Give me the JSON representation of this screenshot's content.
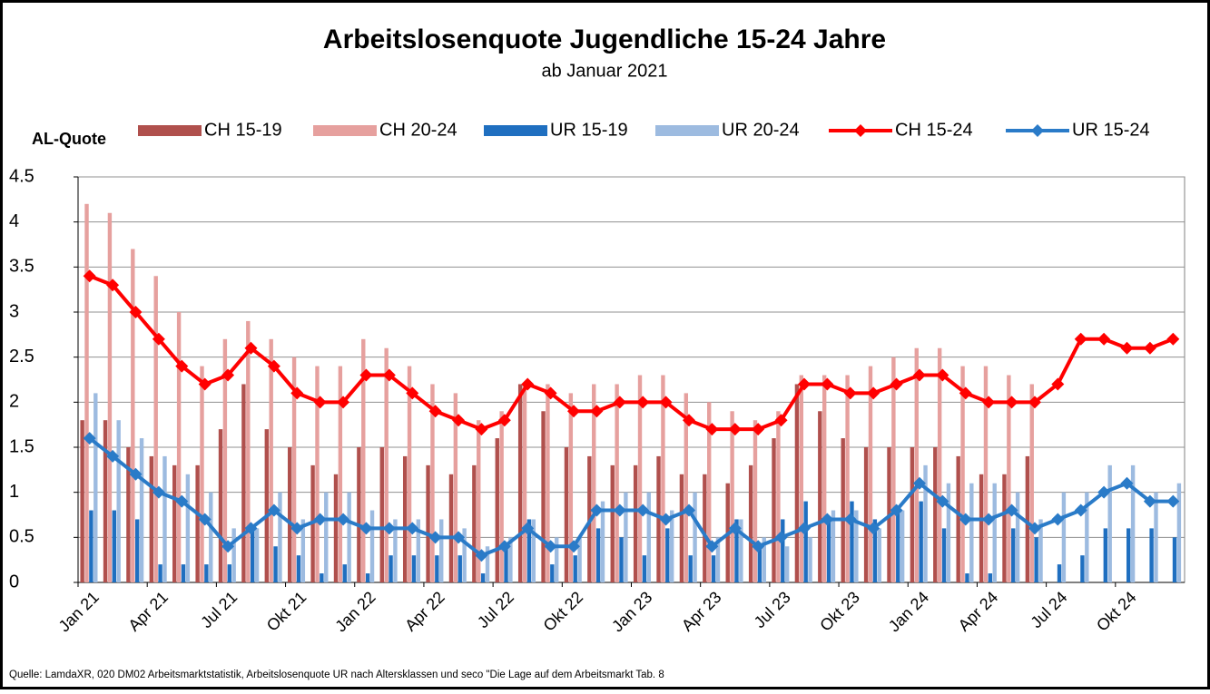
{
  "chart_data": {
    "type": "bar",
    "title": "Arbeitslosenquote Jugendliche 15-24 Jahre",
    "subtitle": "ab Januar 2021",
    "y_label": "AL-Quote",
    "source": "Quelle: LamdaXR, 020 DM02 Arbeitsmarktstatistik,  Arbeitslosenquote UR nach Altersklassen und seco \"Die Lage auf dem Arbeitsmarkt Tab. 8",
    "categories": [
      "Jan 21",
      null,
      null,
      "Apr 21",
      null,
      null,
      "Jul 21",
      null,
      null,
      "Okt 21",
      null,
      null,
      "Jan 22",
      null,
      null,
      "Apr 22",
      null,
      null,
      "Jul 22",
      null,
      null,
      "Okt 22",
      null,
      null,
      "Jan 23",
      null,
      null,
      "Apr 23",
      null,
      null,
      "Jul 23",
      null,
      null,
      "Okt 23",
      null,
      null,
      "Jan 24",
      null,
      null,
      "Apr 24",
      null,
      null,
      "Jul 24",
      null,
      null,
      "Okt 24",
      null,
      null
    ],
    "ylim": [
      0,
      4.5
    ],
    "yticks": [
      0,
      0.5,
      1,
      1.5,
      2,
      2.5,
      3,
      3.5,
      4,
      4.5
    ],
    "grid": true,
    "series": [
      {
        "name": "CH 15-19",
        "type": "bar",
        "color": "#b0504d",
        "values": [
          1.8,
          1.8,
          1.5,
          1.4,
          1.3,
          1.3,
          1.7,
          2.2,
          1.7,
          1.5,
          1.3,
          1.2,
          1.5,
          1.5,
          1.4,
          1.3,
          1.2,
          1.3,
          1.6,
          2.2,
          1.9,
          1.5,
          1.4,
          1.3,
          1.3,
          1.4,
          1.2,
          1.2,
          1.1,
          1.3,
          1.6,
          2.2,
          1.9,
          1.6,
          1.5,
          1.5,
          1.5,
          1.5,
          1.4,
          1.2,
          1.2,
          1.4,
          null,
          null,
          null,
          null,
          null,
          null
        ]
      },
      {
        "name": "CH 20-24",
        "type": "bar",
        "color": "#e6a09e",
        "values": [
          4.2,
          4.1,
          3.7,
          3.4,
          3.0,
          2.4,
          2.7,
          2.9,
          2.7,
          2.5,
          2.4,
          2.4,
          2.7,
          2.6,
          2.4,
          2.2,
          2.1,
          1.8,
          1.9,
          2.2,
          2.2,
          2.1,
          2.2,
          2.2,
          2.3,
          2.3,
          2.1,
          2.0,
          1.9,
          1.8,
          1.9,
          2.3,
          2.3,
          2.3,
          2.4,
          2.5,
          2.6,
          2.6,
          2.4,
          2.4,
          2.3,
          2.2,
          null,
          null,
          null,
          null,
          null,
          null
        ]
      },
      {
        "name": "UR 15-19",
        "type": "bar",
        "color": "#1f6fc0",
        "values": [
          0.8,
          0.8,
          0.7,
          0.2,
          0.2,
          0.2,
          0.2,
          0.6,
          0.4,
          0.3,
          0.1,
          0.2,
          0.1,
          0.3,
          0.3,
          0.3,
          0.3,
          0.1,
          0.4,
          0.7,
          0.2,
          0.3,
          0.6,
          0.5,
          0.3,
          0.6,
          0.3,
          0.3,
          0.7,
          0.4,
          0.7,
          0.9,
          0.7,
          0.9,
          0.7,
          0.8,
          0.9,
          0.6,
          0.1,
          0.1,
          0.6,
          0.5,
          0.2,
          0.3,
          0.6,
          0.6,
          0.6,
          0.5
        ]
      },
      {
        "name": "UR 20-24",
        "type": "bar",
        "color": "#9dbbe0",
        "values": [
          2.1,
          1.8,
          1.6,
          1.4,
          1.2,
          1.0,
          0.6,
          0.6,
          1.0,
          0.7,
          1.0,
          1.0,
          0.8,
          0.7,
          0.7,
          0.7,
          0.6,
          0.4,
          0.5,
          0.7,
          0.5,
          0.5,
          0.9,
          1.0,
          1.0,
          0.8,
          1.0,
          0.5,
          0.7,
          0.5,
          0.4,
          0.5,
          0.8,
          0.8,
          0.6,
          0.8,
          1.3,
          1.1,
          1.1,
          1.1,
          1.0,
          0.7,
          1.0,
          1.0,
          1.3,
          1.3,
          1.0,
          1.1
        ]
      },
      {
        "name": "CH 15-24",
        "type": "line",
        "color": "#ff0000",
        "values": [
          3.4,
          3.3,
          3.0,
          2.7,
          2.4,
          2.2,
          2.3,
          2.6,
          2.4,
          2.1,
          2.0,
          2.0,
          2.3,
          2.3,
          2.1,
          1.9,
          1.8,
          1.7,
          1.8,
          2.2,
          2.1,
          1.9,
          1.9,
          2.0,
          2.0,
          2.0,
          1.8,
          1.7,
          1.7,
          1.7,
          1.8,
          2.2,
          2.2,
          2.1,
          2.1,
          2.2,
          2.3,
          2.3,
          2.1,
          2.0,
          2.0,
          2.0,
          2.2,
          2.7,
          2.7,
          2.6,
          2.6,
          2.7
        ]
      },
      {
        "name": "UR 15-24",
        "type": "line",
        "color": "#2a7bc8",
        "values": [
          1.6,
          1.4,
          1.2,
          1.0,
          0.9,
          0.7,
          0.4,
          0.6,
          0.8,
          0.6,
          0.7,
          0.7,
          0.6,
          0.6,
          0.6,
          0.5,
          0.5,
          0.3,
          0.4,
          0.6,
          0.4,
          0.4,
          0.8,
          0.8,
          0.8,
          0.7,
          0.8,
          0.4,
          0.6,
          0.4,
          0.5,
          0.6,
          0.7,
          0.7,
          0.6,
          0.8,
          1.1,
          0.9,
          0.7,
          0.7,
          0.8,
          0.6,
          0.7,
          0.8,
          1.0,
          1.1,
          0.9,
          0.9
        ]
      }
    ]
  }
}
